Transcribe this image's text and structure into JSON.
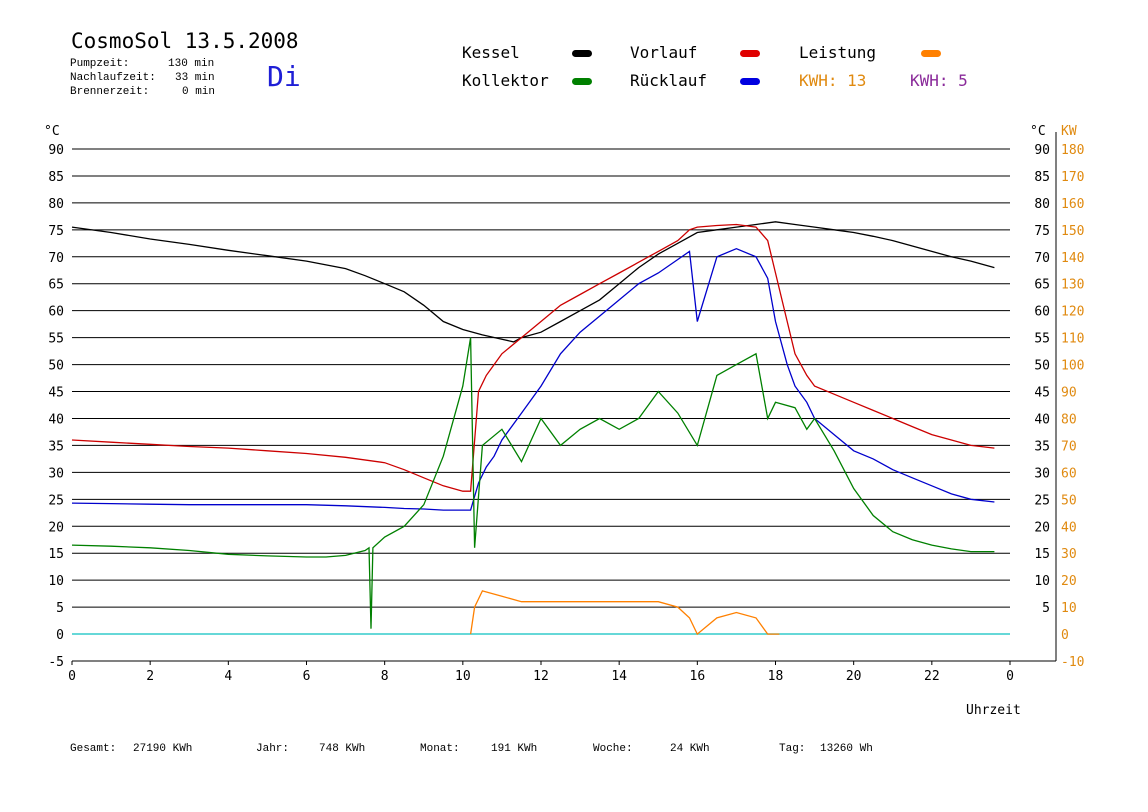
{
  "header": {
    "title": "CosmoSol 13.5.2008",
    "day": "Di",
    "info": [
      {
        "label": "Pumpzeit:",
        "value": "130 min"
      },
      {
        "label": "Nachlaufzeit:",
        "value": "33 min"
      },
      {
        "label": "Brennerzeit:",
        "value": "0 min"
      }
    ]
  },
  "legend": {
    "items": [
      {
        "name": "Kessel",
        "color": "#000000"
      },
      {
        "name": "Vorlauf",
        "color": "#e00000"
      },
      {
        "name": "Leistung",
        "color": "#ff8000"
      },
      {
        "name": "Kollektor",
        "color": "#008000"
      },
      {
        "name": "Rücklauf",
        "color": "#0000e0"
      }
    ],
    "kwh_orange": "KWH: 13",
    "kwh_purple": "KWH: 5",
    "kwh_orange_color": "#e08a10",
    "kwh_purple_color": "#8a2a9a"
  },
  "totals": [
    {
      "label": "Gesamt:",
      "value": "27190 KWh"
    },
    {
      "label": "Jahr:",
      "value": "748 KWh"
    },
    {
      "label": "Monat:",
      "value": "191 KWh"
    },
    {
      "label": "Woche:",
      "value": "24 KWh"
    },
    {
      "label": "Tag:",
      "value": "13260 Wh"
    }
  ],
  "chart_data": {
    "type": "line",
    "xlabel": "Uhrzeit",
    "ylabel_left": "°C",
    "ylabel_right_temp": "°C",
    "ylabel_right_power": "KW",
    "xlim": [
      0,
      24
    ],
    "ylim": [
      -5,
      92
    ],
    "y2lim": [
      -10,
      184
    ],
    "x_tick_labels": [
      "0",
      "2",
      "4",
      "6",
      "8",
      "10",
      "12",
      "14",
      "16",
      "18",
      "20",
      "22",
      "0"
    ],
    "y_left_ticks": [
      -5,
      0,
      5,
      10,
      15,
      20,
      25,
      30,
      35,
      40,
      45,
      50,
      55,
      60,
      65,
      70,
      75,
      80,
      85,
      90
    ],
    "y_right_temp_ticks": [
      5,
      10,
      15,
      20,
      25,
      30,
      35,
      40,
      45,
      50,
      55,
      60,
      65,
      70,
      75,
      80,
      85,
      90
    ],
    "y_right_power_ticks": [
      -10,
      0,
      10,
      20,
      30,
      40,
      50,
      60,
      70,
      80,
      90,
      100,
      110,
      120,
      130,
      140,
      150,
      160,
      170,
      180
    ],
    "grid": true,
    "series": [
      {
        "name": "Kessel",
        "color": "#000000",
        "x": [
          0,
          1,
          2,
          3,
          4,
          5,
          6,
          7,
          7.5,
          8,
          8.5,
          9,
          9.5,
          10,
          10.5,
          11,
          11.3,
          11.5,
          12,
          12.5,
          13,
          13.5,
          14,
          14.5,
          15,
          15.5,
          16,
          16.5,
          17,
          17.5,
          18,
          18.5,
          19,
          19.5,
          20,
          20.5,
          21,
          21.5,
          22,
          22.5,
          23,
          23.6
        ],
        "y": [
          75.5,
          74.5,
          73.3,
          72.3,
          71.2,
          70.2,
          69.2,
          67.8,
          66.5,
          65,
          63.5,
          61,
          58,
          56.5,
          55.5,
          54.7,
          54.2,
          55,
          56,
          58,
          60,
          62,
          65,
          68,
          70.5,
          72.5,
          74.5,
          75,
          75.5,
          76,
          76.5,
          76,
          75.5,
          75,
          74.5,
          73.8,
          73,
          72,
          71,
          70,
          69.2,
          68
        ]
      },
      {
        "name": "Vorlauf",
        "color": "#cc0000",
        "x": [
          0,
          1,
          2,
          3,
          4,
          5,
          6,
          7,
          8,
          8.5,
          9,
          9.5,
          10,
          10.2,
          10.4,
          10.6,
          10.8,
          11,
          11.5,
          12,
          12.5,
          13,
          13.5,
          14,
          14.5,
          15,
          15.5,
          15.8,
          16,
          16.5,
          17,
          17.5,
          17.8,
          18,
          18.3,
          18.5,
          18.8,
          19,
          19.5,
          20,
          20.5,
          21,
          21.5,
          22,
          22.5,
          23,
          23.6
        ],
        "y": [
          36,
          35.6,
          35.2,
          34.8,
          34.5,
          34,
          33.5,
          32.8,
          31.8,
          30.5,
          29,
          27.5,
          26.5,
          26.5,
          45,
          48,
          50,
          52,
          55,
          58,
          61,
          63,
          65,
          67,
          69,
          71,
          73,
          75,
          75.5,
          75.8,
          76,
          75.5,
          73,
          67,
          58,
          52,
          48,
          46,
          44.5,
          43,
          41.5,
          40,
          38.5,
          37,
          36,
          35,
          34.5
        ]
      },
      {
        "name": "Rücklauf",
        "color": "#0000cc",
        "x": [
          0,
          1,
          2,
          3,
          4,
          5,
          6,
          7,
          8,
          8.5,
          9,
          9.5,
          10,
          10.2,
          10.4,
          10.6,
          10.8,
          11,
          11.5,
          12,
          12.5,
          13,
          13.5,
          14,
          14.5,
          15,
          15.5,
          15.8,
          16,
          16.5,
          17,
          17.5,
          17.8,
          18,
          18.3,
          18.5,
          18.8,
          19,
          19.5,
          20,
          20.5,
          21,
          21.5,
          22,
          22.5,
          23,
          23.6
        ],
        "y": [
          24.3,
          24.2,
          24.1,
          24,
          24,
          24,
          24,
          23.8,
          23.5,
          23.3,
          23.2,
          23,
          23,
          23,
          28,
          31,
          33,
          36,
          41,
          46,
          52,
          56,
          59,
          62,
          65,
          67,
          69.5,
          71,
          58,
          70,
          71.5,
          70,
          66,
          58,
          50,
          46,
          43,
          40,
          37,
          34,
          32.5,
          30.5,
          29,
          27.5,
          26,
          25,
          24.5
        ]
      },
      {
        "name": "Kollektor",
        "color": "#008000",
        "x": [
          0,
          1,
          2,
          3,
          4,
          5,
          6,
          6.5,
          7,
          7.5,
          7.6,
          7.65,
          7.7,
          8,
          8.5,
          9,
          9.5,
          10,
          10.2,
          10.3,
          10.5,
          11,
          11.5,
          12,
          12.5,
          13,
          13.5,
          14,
          14.5,
          15,
          15.5,
          16,
          16.5,
          17,
          17.5,
          17.8,
          18,
          18.5,
          18.8,
          19,
          19.5,
          20,
          20.5,
          21,
          21.5,
          22,
          22.5,
          23,
          23.6
        ],
        "y": [
          16.5,
          16.3,
          16,
          15.5,
          14.8,
          14.5,
          14.3,
          14.3,
          14.6,
          15.5,
          16,
          1,
          16,
          18,
          20,
          24,
          33,
          46,
          55,
          16,
          35,
          38,
          32,
          40,
          35,
          38,
          40,
          38,
          40,
          45,
          41,
          35,
          48,
          50,
          52,
          40,
          43,
          42,
          38,
          40,
          34,
          27,
          22,
          19,
          17.5,
          16.5,
          15.8,
          15.3,
          15.3
        ]
      },
      {
        "name": "Leistung",
        "color": "#ff8000",
        "x": [
          10.2,
          10.3,
          10.5,
          11,
          11.5,
          12,
          12.5,
          13,
          13.5,
          14,
          14.5,
          15,
          15.5,
          15.8,
          16,
          16.5,
          17,
          17.5,
          17.8,
          18,
          18.1
        ],
        "y": [
          0,
          5,
          8,
          7,
          6,
          6,
          6,
          6,
          6,
          6,
          6,
          6,
          5,
          3,
          0,
          3,
          4,
          3,
          0,
          0,
          0
        ]
      }
    ]
  }
}
